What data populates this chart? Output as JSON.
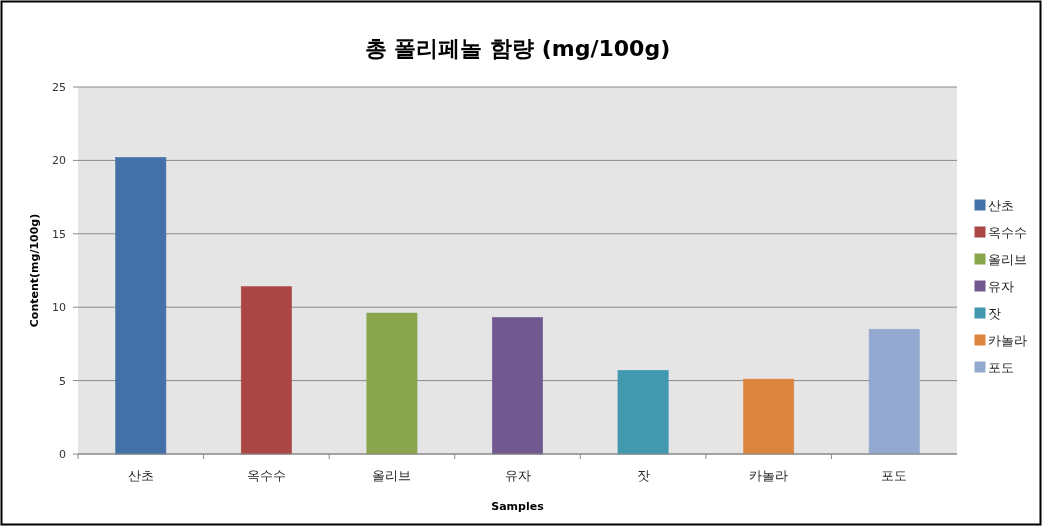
{
  "chart_data": {
    "type": "bar",
    "title": "총 폴리페놀 함량 (mg/100g)",
    "xlabel": "Samples",
    "ylabel": "Content(mg/100g)",
    "categories": [
      "산초",
      "옥수수",
      "올리브",
      "유자",
      "잣",
      "카놀라",
      "포도"
    ],
    "series": [
      {
        "name": "산초",
        "color": "#4470a8",
        "values": [
          20.2,
          null,
          null,
          null,
          null,
          null,
          null
        ]
      },
      {
        "name": "옥수수",
        "color": "#aa4644",
        "values": [
          null,
          11.4,
          null,
          null,
          null,
          null,
          null
        ]
      },
      {
        "name": "올리브",
        "color": "#89a54e",
        "values": [
          null,
          null,
          9.6,
          null,
          null,
          null,
          null
        ]
      },
      {
        "name": "유자",
        "color": "#71588f",
        "values": [
          null,
          null,
          null,
          9.3,
          null,
          null,
          null
        ]
      },
      {
        "name": "잣",
        "color": "#4198af",
        "values": [
          null,
          null,
          null,
          null,
          5.7,
          null,
          null
        ]
      },
      {
        "name": "카놀라",
        "color": "#db843d",
        "values": [
          null,
          null,
          null,
          null,
          null,
          5.1,
          null
        ]
      },
      {
        "name": "포도",
        "color": "#93a9cf",
        "values": [
          null,
          null,
          null,
          null,
          null,
          null,
          8.5
        ]
      }
    ],
    "ylim": [
      0,
      25
    ],
    "yticks": [
      0,
      5,
      10,
      15,
      20,
      25
    ],
    "grid": "y",
    "legend": "right"
  }
}
